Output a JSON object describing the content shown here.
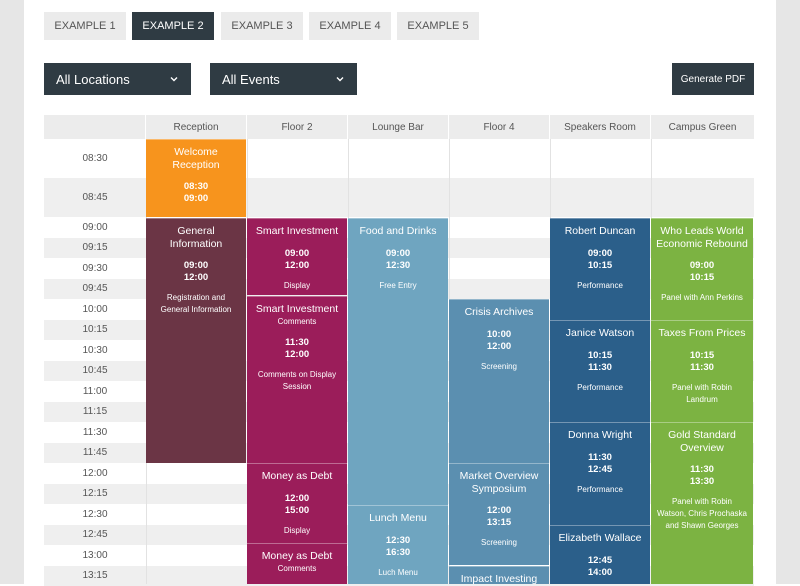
{
  "tabs": [
    {
      "label": "EXAMPLE 1",
      "active": false
    },
    {
      "label": "EXAMPLE 2",
      "active": true
    },
    {
      "label": "EXAMPLE 3",
      "active": false
    },
    {
      "label": "EXAMPLE 4",
      "active": false
    },
    {
      "label": "EXAMPLE 5",
      "active": false
    }
  ],
  "filters": {
    "locations": "All Locations",
    "events": "All Events"
  },
  "toolbar": {
    "generate_pdf": "Generate PDF"
  },
  "colors": {
    "dark": "#2f3b43",
    "orange": "#f7941d",
    "maroon": "#6b3545",
    "magenta": "#9b1d5a",
    "lightblue": "#6fa5c0",
    "steel": "#5b8fb0",
    "navy": "#2b5f8a",
    "green": "#7cb342"
  },
  "rooms": [
    "Reception",
    "Floor 2",
    "Lounge Bar",
    "Floor 4",
    "Speakers Room",
    "Campus Green"
  ],
  "times": [
    "08:30",
    "08:45",
    "09:00",
    "09:15",
    "09:30",
    "09:45",
    "10:00",
    "10:15",
    "10:30",
    "10:45",
    "11:00",
    "11:15",
    "11:30",
    "11:45",
    "12:00",
    "12:15",
    "12:30",
    "12:45",
    "13:00",
    "13:15"
  ],
  "events": [
    {
      "title": "Welcome Reception",
      "start": "08:30",
      "end": "09:00",
      "desc": "",
      "comment": "",
      "room": 0,
      "color": "orange"
    },
    {
      "title": "General Information",
      "start": "09:00",
      "end": "12:00",
      "desc": "Registration and General Information",
      "comment": "",
      "room": 0,
      "color": "maroon"
    },
    {
      "title": "Smart Investment",
      "start": "09:00",
      "end": "12:00",
      "desc": "Display",
      "comment": "",
      "room": 1,
      "color": "magenta"
    },
    {
      "title": "Smart Investment",
      "start": "11:30",
      "end": "12:00",
      "desc": "Comments on Display Session",
      "comment": "Comments",
      "room": 1,
      "color": "magenta"
    },
    {
      "title": "Money as Debt",
      "start": "12:00",
      "end": "15:00",
      "desc": "Display",
      "comment": "",
      "room": 1,
      "color": "magenta"
    },
    {
      "title": "Money as Debt",
      "start": "",
      "end": "",
      "desc": "",
      "comment": "Comments",
      "room": 1,
      "color": "magenta"
    },
    {
      "title": "Food and Drinks",
      "start": "09:00",
      "end": "12:30",
      "desc": "Free Entry",
      "comment": "",
      "room": 2,
      "color": "lightblue"
    },
    {
      "title": "Lunch Menu",
      "start": "12:30",
      "end": "16:30",
      "desc": "Luch Menu",
      "comment": "",
      "room": 2,
      "color": "lightblue"
    },
    {
      "title": "Crisis Archives",
      "start": "10:00",
      "end": "12:00",
      "desc": "Screening",
      "comment": "",
      "room": 3,
      "color": "steel"
    },
    {
      "title": "Market Overview Symposium",
      "start": "12:00",
      "end": "13:15",
      "desc": "Screening",
      "comment": "",
      "room": 3,
      "color": "steel"
    },
    {
      "title": "Impact Investing",
      "start": "",
      "end": "",
      "desc": "",
      "comment": "",
      "room": 3,
      "color": "steel"
    },
    {
      "title": "Robert Duncan",
      "start": "09:00",
      "end": "10:15",
      "desc": "Performance",
      "comment": "",
      "room": 4,
      "color": "navy"
    },
    {
      "title": "Janice Watson",
      "start": "10:15",
      "end": "11:30",
      "desc": "Performance",
      "comment": "",
      "room": 4,
      "color": "navy"
    },
    {
      "title": "Donna Wright",
      "start": "11:30",
      "end": "12:45",
      "desc": "Performance",
      "comment": "",
      "room": 4,
      "color": "navy"
    },
    {
      "title": "Elizabeth Wallace",
      "start": "12:45",
      "end": "14:00",
      "desc": "",
      "comment": "",
      "room": 4,
      "color": "navy"
    },
    {
      "title": "Who Leads World Economic Rebound",
      "start": "09:00",
      "end": "10:15",
      "desc": "Panel with Ann Perkins",
      "comment": "",
      "room": 5,
      "color": "green"
    },
    {
      "title": "Taxes From Prices",
      "start": "10:15",
      "end": "11:30",
      "desc": "Panel with Robin Landrum",
      "comment": "",
      "room": 5,
      "color": "green"
    },
    {
      "title": "Gold Standard Overview",
      "start": "11:30",
      "end": "13:30",
      "desc": "Panel with Robin Watson, Chris Prochaska and Shawn Georges",
      "comment": "",
      "room": 5,
      "color": "green"
    }
  ]
}
